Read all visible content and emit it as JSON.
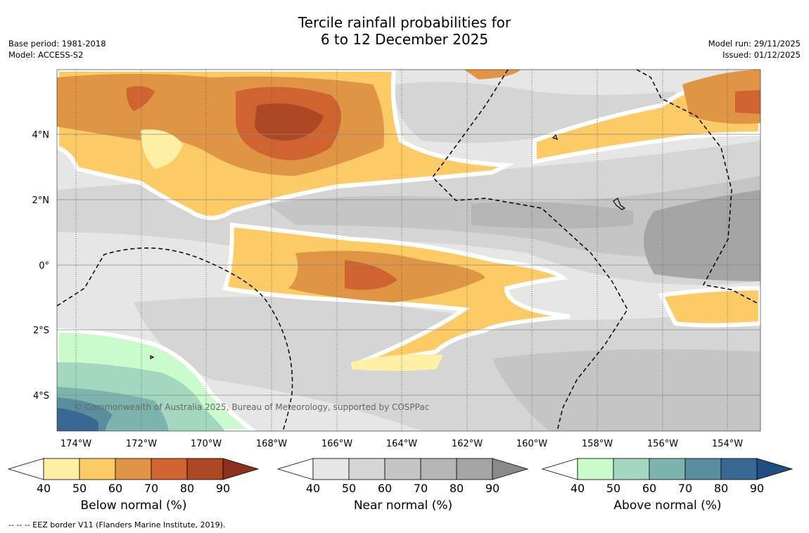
{
  "title": {
    "line1": "Tercile rainfall probabilities for",
    "line2": "6 to 12 December 2025"
  },
  "meta_left": {
    "base_period": "Base period: 1981-2018",
    "model": "Model: ACCESS-S2"
  },
  "meta_right": {
    "model_run": "Model run: 29/11/2025",
    "issued": "Issued: 01/12/2025"
  },
  "map": {
    "lon_labels": [
      "174°W",
      "172°W",
      "170°W",
      "168°W",
      "166°W",
      "164°W",
      "162°W",
      "160°W",
      "158°W",
      "156°W",
      "154°W"
    ],
    "lat_labels": [
      "4°N",
      "2°N",
      "0°",
      "2°S",
      "4°S"
    ],
    "copyright": "© Commonwealth of Australia 2025, Bureau of Meteorology, supported by COSPPac"
  },
  "colorbars": [
    {
      "label": "Below normal (%)",
      "ticks": [
        "40",
        "50",
        "60",
        "70",
        "80",
        "90"
      ],
      "colors": [
        "#fff0a6",
        "#fdcb65",
        "#e09545",
        "#cf6431",
        "#ae4824"
      ],
      "arrow": "#8c2f1b"
    },
    {
      "label": "Near normal (%)",
      "ticks": [
        "40",
        "50",
        "60",
        "70",
        "80",
        "90"
      ],
      "colors": [
        "#e6e6e6",
        "#d5d5d5",
        "#c5c5c5",
        "#b5b5b5",
        "#a5a5a5"
      ],
      "arrow": "#8a8a8a"
    },
    {
      "label": "Above normal (%)",
      "ticks": [
        "40",
        "50",
        "60",
        "70",
        "80",
        "90"
      ],
      "colors": [
        "#c9fbcc",
        "#a4d7bf",
        "#7db4ae",
        "#5a8e9e",
        "#3a6894"
      ],
      "arrow": "#1f4f82"
    }
  ],
  "footnote": "--  --  -- EEZ border V11 (Flanders Marine Institute, 2019)."
}
